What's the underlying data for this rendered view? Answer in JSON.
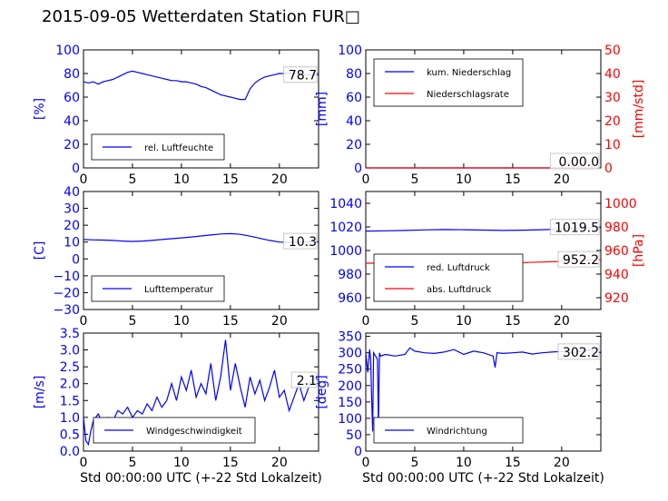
{
  "title": "2015-09-05 Wetterdaten Station FUR□",
  "colors": {
    "blue": "#0000ff",
    "red": "#ff0000",
    "axis": "#000000"
  },
  "chart_data": [
    {
      "type": "line",
      "panel": "humidity",
      "x_ticks": [
        "0",
        "5",
        "10",
        "15",
        "20"
      ],
      "xlim": [
        0,
        24
      ],
      "ylim": [
        0,
        100
      ],
      "y_ticks": [
        "0",
        "20",
        "40",
        "60",
        "80",
        "100"
      ],
      "ylabel": "[%]",
      "legend": "rel. Luftfeuchte",
      "legend_position": "lower-left",
      "annotation": "78.7",
      "series": [
        {
          "name": "rel. Luftfeuchte",
          "color": "#0000ff",
          "x": [
            0,
            0.5,
            1,
            1.5,
            2,
            2.5,
            3,
            3.5,
            4,
            4.5,
            5,
            5.5,
            6,
            6.5,
            7,
            7.5,
            8,
            8.5,
            9,
            9.5,
            10,
            10.5,
            11,
            11.5,
            12,
            12.5,
            13,
            13.5,
            14,
            14.5,
            15,
            15.5,
            16,
            16.5,
            17,
            17.5,
            18,
            18.5,
            19,
            19.5,
            20,
            20.5,
            21,
            21.5,
            22,
            22.5,
            23,
            23.5,
            24
          ],
          "y": [
            73,
            72,
            73,
            71,
            73,
            74,
            75,
            77,
            79,
            81,
            82,
            81,
            80,
            79,
            78,
            77,
            76,
            75,
            74,
            74,
            73,
            73,
            72,
            71,
            69,
            68,
            66,
            64,
            62,
            61,
            60,
            59,
            58,
            58,
            67,
            72,
            75,
            77,
            78,
            79,
            80,
            80,
            80,
            80,
            79,
            79,
            79,
            79,
            78.7
          ]
        }
      ]
    },
    {
      "type": "line",
      "panel": "precipitation",
      "x_ticks": [
        "0",
        "5",
        "10",
        "15",
        "20"
      ],
      "xlim": [
        0,
        24
      ],
      "ylim": [
        0,
        100
      ],
      "y_ticks": [
        "0",
        "20",
        "40",
        "60",
        "80",
        "100"
      ],
      "ylabel": "[mm]",
      "y2lim": [
        0,
        50
      ],
      "y2_ticks": [
        "0",
        "10",
        "20",
        "30",
        "40",
        "50"
      ],
      "y2label": "[mm/std]",
      "legend_position": "upper-left",
      "annotation": "0.00.0",
      "series": [
        {
          "name": "kum. Niederschlag",
          "color": "#0000ff",
          "x": [
            0,
            24
          ],
          "y": [
            0,
            0
          ]
        },
        {
          "name": "Niederschlagsrate",
          "color": "#ff0000",
          "x": [
            0,
            24
          ],
          "y": [
            0,
            0
          ]
        }
      ]
    },
    {
      "type": "line",
      "panel": "temperature",
      "x_ticks": [
        "0",
        "5",
        "10",
        "15",
        "20"
      ],
      "xlim": [
        0,
        24
      ],
      "ylim": [
        -30,
        40
      ],
      "y_ticks": [
        "−30",
        "−20",
        "−10",
        "0",
        "10",
        "20",
        "30",
        "40"
      ],
      "ylabel": "[C]",
      "legend": "Lufttemperatur",
      "legend_position": "lower-left",
      "annotation": "10.3",
      "series": [
        {
          "name": "Lufttemperatur",
          "color": "#0000ff",
          "x": [
            0,
            1,
            2,
            3,
            4,
            5,
            6,
            7,
            8,
            9,
            10,
            11,
            12,
            13,
            14,
            15,
            16,
            17,
            18,
            19,
            20,
            21,
            22,
            23,
            24
          ],
          "y": [
            11.5,
            11.3,
            11.2,
            11.0,
            10.6,
            10.4,
            10.6,
            11.0,
            11.5,
            12.0,
            12.5,
            13.0,
            13.6,
            14.2,
            14.8,
            15.0,
            14.6,
            13.5,
            12.2,
            11.0,
            10.0,
            9.8,
            10.0,
            10.2,
            10.3
          ]
        }
      ]
    },
    {
      "type": "line",
      "panel": "pressure",
      "x_ticks": [
        "0",
        "5",
        "10",
        "15",
        "20"
      ],
      "xlim": [
        0,
        24
      ],
      "ylim": [
        950,
        1050
      ],
      "y_ticks": [
        "960",
        "980",
        "1000",
        "1020",
        "1040"
      ],
      "y2lim": [
        910,
        1010
      ],
      "y2_ticks": [
        "920",
        "940",
        "960",
        "980",
        "1000"
      ],
      "y2label": "[hPa]",
      "legend_position": "lower-left",
      "annotations": [
        "1019.5",
        "952.2"
      ],
      "series": [
        {
          "name": "red. Luftdruck",
          "color": "#0000ff",
          "axis": "left",
          "x": [
            0,
            2,
            4,
            6,
            8,
            10,
            12,
            14,
            16,
            18,
            20,
            22,
            24
          ],
          "y": [
            1016.5,
            1016.7,
            1017.0,
            1017.5,
            1017.8,
            1017.6,
            1017.3,
            1017.0,
            1017.2,
            1017.6,
            1018.2,
            1019.0,
            1019.5
          ]
        },
        {
          "name": "abs. Luftdruck",
          "color": "#ff0000",
          "axis": "right",
          "x": [
            0,
            2,
            4,
            6,
            8,
            10,
            12,
            14,
            16,
            18,
            20,
            22,
            24
          ],
          "y": [
            949.2,
            949.4,
            949.6,
            950.0,
            950.2,
            950.0,
            949.8,
            949.6,
            949.8,
            950.2,
            950.8,
            951.6,
            952.2
          ]
        }
      ]
    },
    {
      "type": "line",
      "panel": "wind-speed",
      "x_ticks": [
        "0",
        "5",
        "10",
        "15",
        "20"
      ],
      "xlabel": "Std 00:00:00 UTC (+-22 Std Lokalzeit)",
      "xlim": [
        0,
        24
      ],
      "ylim": [
        0,
        3.5
      ],
      "y_ticks": [
        "0.0",
        "0.5",
        "1.0",
        "1.5",
        "2.0",
        "2.5",
        "3.0",
        "3.5"
      ],
      "ylabel": "[m/s]",
      "legend": "Windgeschwindigkeit",
      "legend_position": "lower-right",
      "annotation": "2.1",
      "series": [
        {
          "name": "Windgeschwindigkeit",
          "color": "#0000ff",
          "x": [
            0,
            0.25,
            0.5,
            0.75,
            1,
            1.5,
            2,
            2.5,
            3,
            3.5,
            4,
            4.5,
            5,
            5.5,
            6,
            6.5,
            7,
            7.5,
            8,
            8.5,
            9,
            9.5,
            10,
            10.5,
            11,
            11.5,
            12,
            12.5,
            13,
            13.5,
            14,
            14.5,
            15,
            15.5,
            16,
            16.5,
            17,
            17.5,
            18,
            18.5,
            19,
            19.5,
            20,
            20.5,
            21,
            21.5,
            22,
            22.5,
            23,
            23.5,
            24
          ],
          "y": [
            1.0,
            0.3,
            0.2,
            0.6,
            0.9,
            1.1,
            0.8,
            1.0,
            0.9,
            1.2,
            1.1,
            1.3,
            1.0,
            1.2,
            1.1,
            1.4,
            1.2,
            1.6,
            1.3,
            1.5,
            2.0,
            1.5,
            2.2,
            1.8,
            2.4,
            1.6,
            2.0,
            1.7,
            2.6,
            1.5,
            2.2,
            3.3,
            1.8,
            2.6,
            1.9,
            1.3,
            2.2,
            1.7,
            2.1,
            1.5,
            1.9,
            2.4,
            1.6,
            1.8,
            1.2,
            1.6,
            2.0,
            1.5,
            1.9,
            2.2,
            2.1
          ]
        }
      ]
    },
    {
      "type": "line",
      "panel": "wind-direction",
      "x_ticks": [
        "0",
        "5",
        "10",
        "15",
        "20"
      ],
      "xlabel": "Std 00:00:00 UTC (+-22 Std Lokalzeit)",
      "xlim": [
        0,
        24
      ],
      "ylim": [
        0,
        360
      ],
      "y_ticks": [
        "0",
        "50",
        "100",
        "150",
        "200",
        "250",
        "300",
        "350"
      ],
      "ylabel": "[deg]",
      "legend": "Windrichtung",
      "legend_position": "lower-left",
      "annotation": "302.2",
      "series": [
        {
          "name": "Windrichtung",
          "color": "#0000ff",
          "x": [
            0,
            0.2,
            0.4,
            0.5,
            0.6,
            0.7,
            0.8,
            1.0,
            1.2,
            1.3,
            1.4,
            1.5,
            2,
            3,
            4,
            4.5,
            5,
            6,
            7,
            8,
            9,
            10,
            11,
            12,
            13,
            13.2,
            13.4,
            14,
            15,
            16,
            17,
            18,
            19,
            20,
            21,
            22,
            23,
            23.5,
            24
          ],
          "y": [
            300,
            240,
            310,
            280,
            160,
            60,
            300,
            290,
            280,
            70,
            300,
            290,
            295,
            290,
            295,
            315,
            305,
            300,
            298,
            302,
            310,
            295,
            305,
            300,
            290,
            255,
            300,
            298,
            300,
            302,
            296,
            300,
            302,
            304,
            300,
            305,
            310,
            300,
            302.2
          ]
        }
      ]
    }
  ]
}
